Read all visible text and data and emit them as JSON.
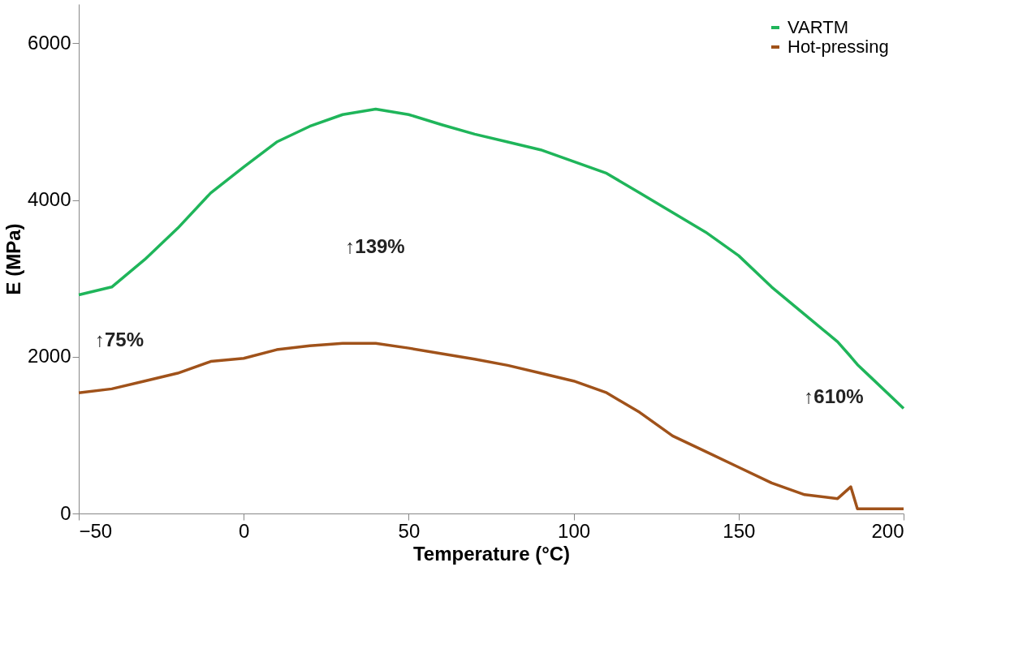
{
  "chart_data": {
    "type": "line",
    "xlabel": "Temperature (°C)",
    "ylabel": "E (MPa)",
    "x": [
      -50,
      -40,
      -30,
      -20,
      -10,
      0,
      10,
      20,
      30,
      40,
      50,
      60,
      70,
      80,
      90,
      100,
      110,
      120,
      130,
      140,
      150,
      160,
      170,
      180,
      184,
      186,
      190,
      200
    ],
    "series": [
      {
        "name": "VARTM",
        "color": "#1fb55a",
        "values": [
          2790,
          2890,
          3240,
          3640,
          4090,
          4420,
          4740,
          4940,
          5090,
          5160,
          5090,
          4960,
          4840,
          4740,
          4640,
          4490,
          4340,
          4090,
          3840,
          3590,
          3290,
          2890,
          2540,
          2190,
          2000,
          1900,
          1740,
          1340
        ]
      },
      {
        "name": "Hot-pressing",
        "color": "#a0521a",
        "values": [
          1540,
          1590,
          1690,
          1790,
          1940,
          1980,
          2090,
          2140,
          2170,
          2170,
          2110,
          2040,
          1970,
          1890,
          1790,
          1690,
          1540,
          1290,
          990,
          790,
          590,
          390,
          240,
          190,
          340,
          60,
          60,
          60
        ]
      }
    ],
    "xlim": [
      -50,
      200
    ],
    "xticks": [
      -50,
      0,
      50,
      100,
      150,
      200
    ],
    "ylim": [
      0,
      6500
    ],
    "yticks": [
      0,
      2000,
      4000,
      6000
    ],
    "annotations": [
      "↑139%",
      "↑75%",
      "↑610%"
    ],
    "legend": "top right",
    "grid": false,
    "marker": "none",
    "line_style": "solid"
  }
}
